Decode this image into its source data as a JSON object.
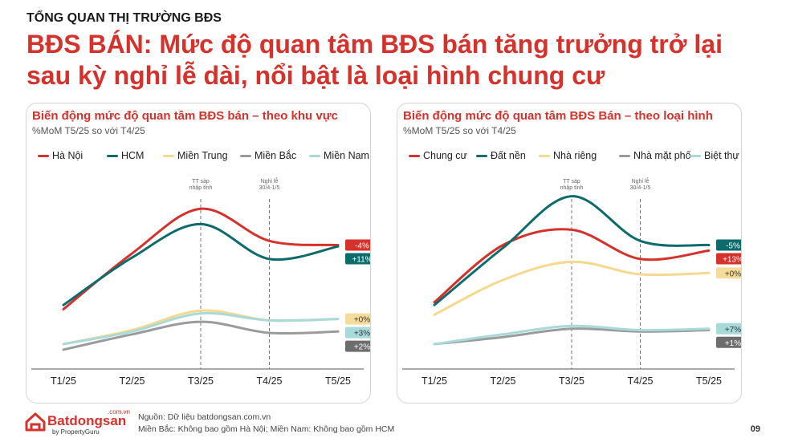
{
  "header": {
    "kicker": "TỔNG QUAN THỊ TRƯỜNG BĐS",
    "headline": "BĐS BÁN: Mức độ quan tâm BĐS bán tăng trưởng trở lại sau kỳ nghỉ lễ dài, nổi bật là loại hình chung cư"
  },
  "chart_data": [
    {
      "type": "line",
      "title": "Biến động mức độ quan tâm BĐS bán – theo khu vực",
      "subtitle": "%MoM T5/25 so với T4/25",
      "categories": [
        "T1/25",
        "T2/25",
        "T3/25",
        "T4/25",
        "T5/25"
      ],
      "series": [
        {
          "name": "Hà Nội",
          "color": "#d7312b",
          "values": [
            2.0,
            6.0,
            9.2,
            6.9,
            6.6
          ],
          "label": "-4%"
        },
        {
          "name": "HCM",
          "color": "#0c6b6b",
          "values": [
            2.3,
            5.7,
            8.1,
            5.6,
            6.5
          ],
          "label": "+11%"
        },
        {
          "name": "Miền Trung",
          "color": "#f5d98e",
          "values": [
            -0.5,
            0.5,
            1.9,
            1.2,
            1.3
          ],
          "label": "+0%"
        },
        {
          "name": "Miền Bắc",
          "color": "#9b9b9b",
          "values": [
            -0.9,
            0.2,
            1.1,
            0.3,
            0.4
          ],
          "label": "+2%"
        },
        {
          "name": "Miền Nam",
          "color": "#a8dada",
          "values": [
            -0.5,
            0.4,
            1.7,
            1.2,
            1.3
          ],
          "label": "+3%"
        }
      ],
      "annotations": [
        {
          "x": "T3/25",
          "text": [
            "TT sáp",
            "nhập tỉnh"
          ]
        },
        {
          "x": "T4/25",
          "text": [
            "Nghỉ lễ",
            "30/4-1/5"
          ]
        }
      ],
      "legend": "top"
    },
    {
      "type": "line",
      "title": "Biến động mức độ quan tâm BĐS Bán – theo loại hình",
      "subtitle": "%MoM T5/25 so với T4/25",
      "categories": [
        "T1/25",
        "T2/25",
        "T3/25",
        "T4/25",
        "T5/25"
      ],
      "series": [
        {
          "name": "Chung cư",
          "color": "#d7312b",
          "values": [
            2.5,
            6.6,
            7.7,
            5.6,
            6.2
          ],
          "label": "+13%"
        },
        {
          "name": "Đất nền",
          "color": "#0c6b6b",
          "values": [
            2.3,
            6.4,
            10.1,
            6.9,
            6.6
          ],
          "label": "-5%"
        },
        {
          "name": "Nhà riêng",
          "color": "#f5d98e",
          "values": [
            1.6,
            4.1,
            5.4,
            4.5,
            4.6
          ],
          "label": "+0%"
        },
        {
          "name": "Nhà mặt phố",
          "color": "#9b9b9b",
          "values": [
            -0.5,
            0.0,
            0.6,
            0.4,
            0.5
          ],
          "label": "+1%"
        },
        {
          "name": "Biệt thự",
          "color": "#a8dada",
          "values": [
            -0.5,
            0.2,
            0.8,
            0.5,
            0.6
          ],
          "label": "+7%"
        }
      ],
      "annotations": [
        {
          "x": "T3/25",
          "text": [
            "TT sáp",
            "nhập tỉnh"
          ]
        },
        {
          "x": "T4/25",
          "text": [
            "Nghỉ lễ",
            "30/4-1/5"
          ]
        }
      ],
      "legend": "top"
    }
  ],
  "footer": {
    "brand": "Batdongsan",
    "tld": ".com.vn",
    "by": "by PropertyGuru",
    "source": "Nguồn: Dữ liệu batdongsan.com.vn",
    "note": "Miền Bắc: Không bao gồm Hà Nội; Miền Nam: Không bao gồm HCM",
    "page": "09"
  }
}
